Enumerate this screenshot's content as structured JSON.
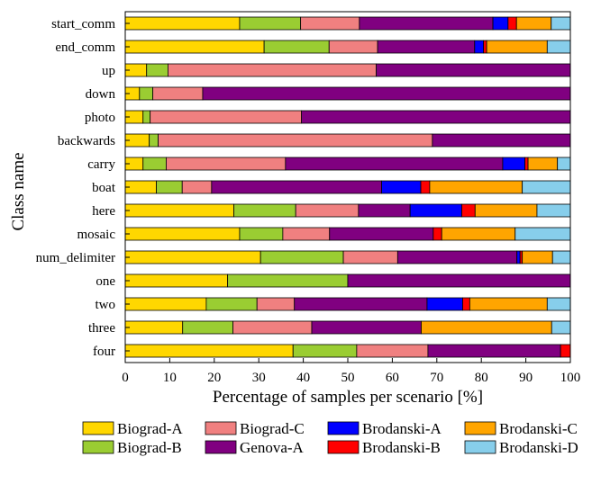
{
  "chart_data": {
    "type": "bar",
    "orientation": "horizontal",
    "stacked": true,
    "xlabel": "Percentage of samples per scenario [%]",
    "ylabel": "Class name",
    "xlim": [
      0,
      100
    ],
    "xticks": [
      "0",
      "10",
      "20",
      "30",
      "40",
      "50",
      "60",
      "70",
      "80",
      "90",
      "100"
    ],
    "grid": false,
    "legend_position": "bottom",
    "categories": [
      "start_comm",
      "end_comm",
      "up",
      "down",
      "photo",
      "backwards",
      "carry",
      "boat",
      "here",
      "mosaic",
      "num_delimiter",
      "one",
      "two",
      "three",
      "four"
    ],
    "series": [
      {
        "name": "Biograd-A",
        "color": "#FFD700",
        "values": [
          25.7,
          31.2,
          4.8,
          3.2,
          4.0,
          5.4,
          4.0,
          7.0,
          24.4,
          25.7,
          30.4,
          23.0,
          18.2,
          12.9,
          37.7
        ]
      },
      {
        "name": "Biograd-B",
        "color": "#9ACD32",
        "values": [
          13.7,
          14.6,
          4.8,
          3.0,
          1.6,
          2.0,
          5.2,
          5.8,
          13.9,
          9.7,
          18.6,
          27.0,
          11.4,
          11.3,
          14.3
        ]
      },
      {
        "name": "Biograd-C",
        "color": "#F08080",
        "values": [
          13.2,
          10.9,
          46.8,
          11.2,
          34.0,
          61.6,
          26.8,
          6.6,
          14.1,
          10.5,
          12.2,
          0,
          8.4,
          17.7,
          16.0
        ]
      },
      {
        "name": "Genova-A",
        "color": "#800080",
        "values": [
          30.0,
          21.8,
          43.6,
          82.6,
          60.4,
          31.0,
          48.8,
          38.2,
          11.6,
          23.3,
          26.8,
          50.0,
          29.8,
          24.6,
          29.8
        ]
      },
      {
        "name": "Brodanski-A",
        "color": "#0000FF",
        "values": [
          3.4,
          2.0,
          0,
          0,
          0,
          0,
          5.0,
          8.8,
          11.6,
          0,
          0.7,
          0,
          8.0,
          0,
          0
        ]
      },
      {
        "name": "Brodanski-B",
        "color": "#FF0000",
        "values": [
          1.9,
          0.7,
          0,
          0,
          0,
          0,
          0.7,
          2.0,
          3.0,
          1.9,
          0.5,
          0,
          1.6,
          0,
          2.2
        ]
      },
      {
        "name": "Brodanski-C",
        "color": "#FFA500",
        "values": [
          7.8,
          13.6,
          0,
          0,
          0,
          0,
          6.6,
          20.8,
          13.9,
          16.5,
          6.8,
          0,
          17.4,
          29.3,
          0
        ]
      },
      {
        "name": "Brodanski-D",
        "color": "#87CEEB",
        "values": [
          4.3,
          5.2,
          0,
          0,
          0,
          0,
          2.9,
          10.8,
          7.5,
          12.4,
          4.0,
          0,
          5.2,
          4.2,
          0
        ]
      }
    ]
  }
}
